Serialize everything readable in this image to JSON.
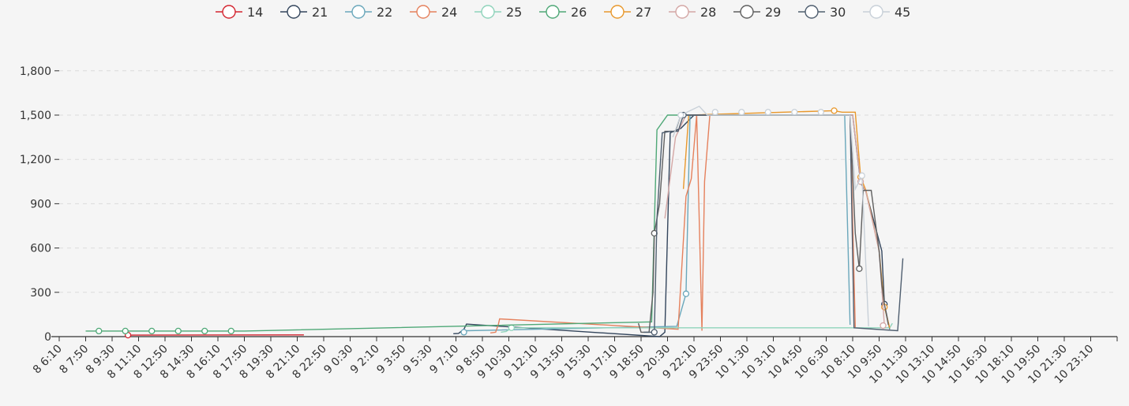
{
  "chart_data": {
    "type": "line",
    "title": "",
    "xlabel": "",
    "ylabel": "",
    "ylim": [
      0,
      1800
    ],
    "yticks": [
      0,
      300,
      600,
      900,
      1200,
      1500,
      1800
    ],
    "ytick_labels": [
      "0",
      "300",
      "600",
      "900",
      "1,200",
      "1,500",
      "1,800"
    ],
    "grid": true,
    "legend_position": "top",
    "x_categories": [
      "8 6:10",
      "8 7:50",
      "8 9:30",
      "8 11:10",
      "8 12:50",
      "8 14:30",
      "8 16:10",
      "8 17:50",
      "8 19:30",
      "8 21:10",
      "8 22:50",
      "9 0:30",
      "9 2:10",
      "9 3:50",
      "9 5:30",
      "9 7:10",
      "9 8:50",
      "9 10:30",
      "9 12:10",
      "9 13:50",
      "9 15:30",
      "9 17:10",
      "9 18:50",
      "9 20:30",
      "9 22:10",
      "9 23:50",
      "10 1:30",
      "10 3:10",
      "10 4:50",
      "10 6:30",
      "10 8:10",
      "10 9:50",
      "10 11:30",
      "10 13:10",
      "10 14:50",
      "10 16:30",
      "10 18:10",
      "10 19:50",
      "10 21:30",
      "10 23:10"
    ],
    "series": [
      {
        "name": "14",
        "color": "#d3242f",
        "points": [
          [
            2.6,
            10
          ],
          [
            2.7,
            10
          ],
          [
            9.1,
            12
          ],
          [
            9.25,
            12
          ]
        ],
        "markers": [
          [
            2.6,
            10
          ]
        ]
      },
      {
        "name": "21",
        "color": "#33455c",
        "points": [
          [
            14.9,
            20
          ],
          [
            15.1,
            22
          ],
          [
            15.3,
            50
          ],
          [
            15.4,
            85
          ],
          [
            22.7,
            0
          ],
          [
            22.9,
            30
          ],
          [
            23.1,
            1380
          ],
          [
            23.5,
            1410
          ],
          [
            24,
            1500
          ],
          [
            30,
            1500
          ],
          [
            30.3,
            1040
          ],
          [
            30.5,
            980
          ],
          [
            31.1,
            580
          ],
          [
            31.2,
            220
          ],
          [
            31.4,
            50
          ]
        ],
        "markers": [
          [
            31.2,
            220
          ]
        ]
      },
      {
        "name": "22",
        "color": "#6aa7bb",
        "points": [
          [
            15.2,
            20
          ],
          [
            15.4,
            40
          ],
          [
            23.35,
            70
          ],
          [
            23.7,
            290
          ],
          [
            23.85,
            1500
          ],
          [
            29.7,
            1500
          ],
          [
            29.9,
            80
          ]
        ],
        "markers": [
          [
            15.3,
            30
          ],
          [
            23.7,
            290
          ]
        ]
      },
      {
        "name": "24",
        "color": "#e5815d",
        "points": [
          [
            16.3,
            25
          ],
          [
            16.5,
            30
          ],
          [
            16.6,
            80
          ],
          [
            16.65,
            120
          ],
          [
            23.4,
            50
          ],
          [
            23.7,
            950
          ],
          [
            23.9,
            1070
          ],
          [
            24.1,
            1500
          ],
          [
            24.3,
            40
          ],
          [
            24.4,
            1050
          ],
          [
            24.6,
            1500
          ],
          [
            29.5,
            1500
          ],
          [
            29.9,
            1500
          ],
          [
            30.1,
            60
          ]
        ],
        "markers": []
      },
      {
        "name": "25",
        "color": "#8fd3bb",
        "points": [
          [
            16.7,
            30
          ],
          [
            16.9,
            35
          ],
          [
            17.1,
            60
          ],
          [
            31.4,
            60
          ],
          [
            31.5,
            90
          ]
        ],
        "markers": [
          [
            17.1,
            60
          ]
        ]
      },
      {
        "name": "26",
        "color": "#4fa877",
        "points": [
          [
            1,
            38
          ],
          [
            7,
            38
          ],
          [
            22.4,
            100
          ],
          [
            22.6,
            1400
          ],
          [
            23,
            1500
          ],
          [
            29.8,
            1500
          ]
        ],
        "markers": [
          [
            1.5,
            38
          ],
          [
            2.5,
            38
          ],
          [
            3.5,
            38
          ],
          [
            4.5,
            38
          ],
          [
            5.5,
            38
          ],
          [
            6.5,
            38
          ]
        ]
      },
      {
        "name": "27",
        "color": "#e8982c",
        "points": [
          [
            23.6,
            1000
          ],
          [
            23.8,
            1500
          ],
          [
            29.3,
            1530
          ],
          [
            29.6,
            1520
          ],
          [
            30.1,
            1520
          ],
          [
            30.3,
            1080
          ],
          [
            30.5,
            990
          ],
          [
            31,
            580
          ],
          [
            31.2,
            200
          ],
          [
            31.4,
            60
          ]
        ],
        "markers": [
          [
            29.3,
            1530
          ],
          [
            30.3,
            1080
          ],
          [
            31.2,
            200
          ]
        ]
      },
      {
        "name": "28",
        "color": "#d4a7a5",
        "points": [
          [
            22.9,
            800
          ],
          [
            23.3,
            1350
          ],
          [
            23.7,
            1500
          ],
          [
            30,
            1500
          ],
          [
            30.3,
            1050
          ],
          [
            30.5,
            980
          ],
          [
            31,
            580
          ],
          [
            31.2,
            75
          ]
        ],
        "markers": [
          [
            30.3,
            1050
          ],
          [
            31.15,
            75
          ]
        ]
      },
      {
        "name": "29",
        "color": "#5f5f5f",
        "points": [
          [
            21.9,
            90
          ],
          [
            22,
            30
          ],
          [
            22.3,
            30
          ],
          [
            22.45,
            300
          ],
          [
            22.5,
            700
          ],
          [
            22.7,
            900
          ],
          [
            22.9,
            1390
          ],
          [
            23.3,
            1390
          ],
          [
            23.5,
            1500
          ],
          [
            29.9,
            1500
          ],
          [
            30.1,
            700
          ],
          [
            30.25,
            460
          ],
          [
            30.4,
            990
          ],
          [
            30.7,
            990
          ],
          [
            31,
            580
          ],
          [
            31.1,
            350
          ],
          [
            31.2,
            220
          ],
          [
            31.35,
            80
          ]
        ],
        "markers": [
          [
            22.5,
            700
          ],
          [
            30.25,
            460
          ]
        ]
      },
      {
        "name": "30",
        "color": "#4f5e6f",
        "points": [
          [
            22.1,
            30
          ],
          [
            22.5,
            30
          ],
          [
            22.6,
            800
          ],
          [
            22.8,
            1380
          ],
          [
            23.1,
            1390
          ],
          [
            23.4,
            1390
          ],
          [
            23.6,
            1500
          ],
          [
            29.9,
            1500
          ],
          [
            30.05,
            60
          ],
          [
            31.7,
            40
          ],
          [
            31.9,
            530
          ]
        ],
        "markers": [
          [
            22.5,
            30
          ],
          [
            23.6,
            1500
          ]
        ]
      },
      {
        "name": "45",
        "color": "#c8d0d8",
        "points": [
          [
            23.2,
            1350
          ],
          [
            23.5,
            1500
          ],
          [
            24.2,
            1560
          ],
          [
            24.5,
            1500
          ],
          [
            29.9,
            1500
          ],
          [
            30.1,
            1000
          ],
          [
            30.35,
            1090
          ],
          [
            30.6,
            70
          ]
        ],
        "markers": [
          [
            23.5,
            1500
          ],
          [
            24.8,
            1520
          ],
          [
            25.8,
            1520
          ],
          [
            26.8,
            1520
          ],
          [
            27.8,
            1520
          ],
          [
            28.8,
            1520
          ],
          [
            30.35,
            1090
          ]
        ]
      }
    ]
  }
}
